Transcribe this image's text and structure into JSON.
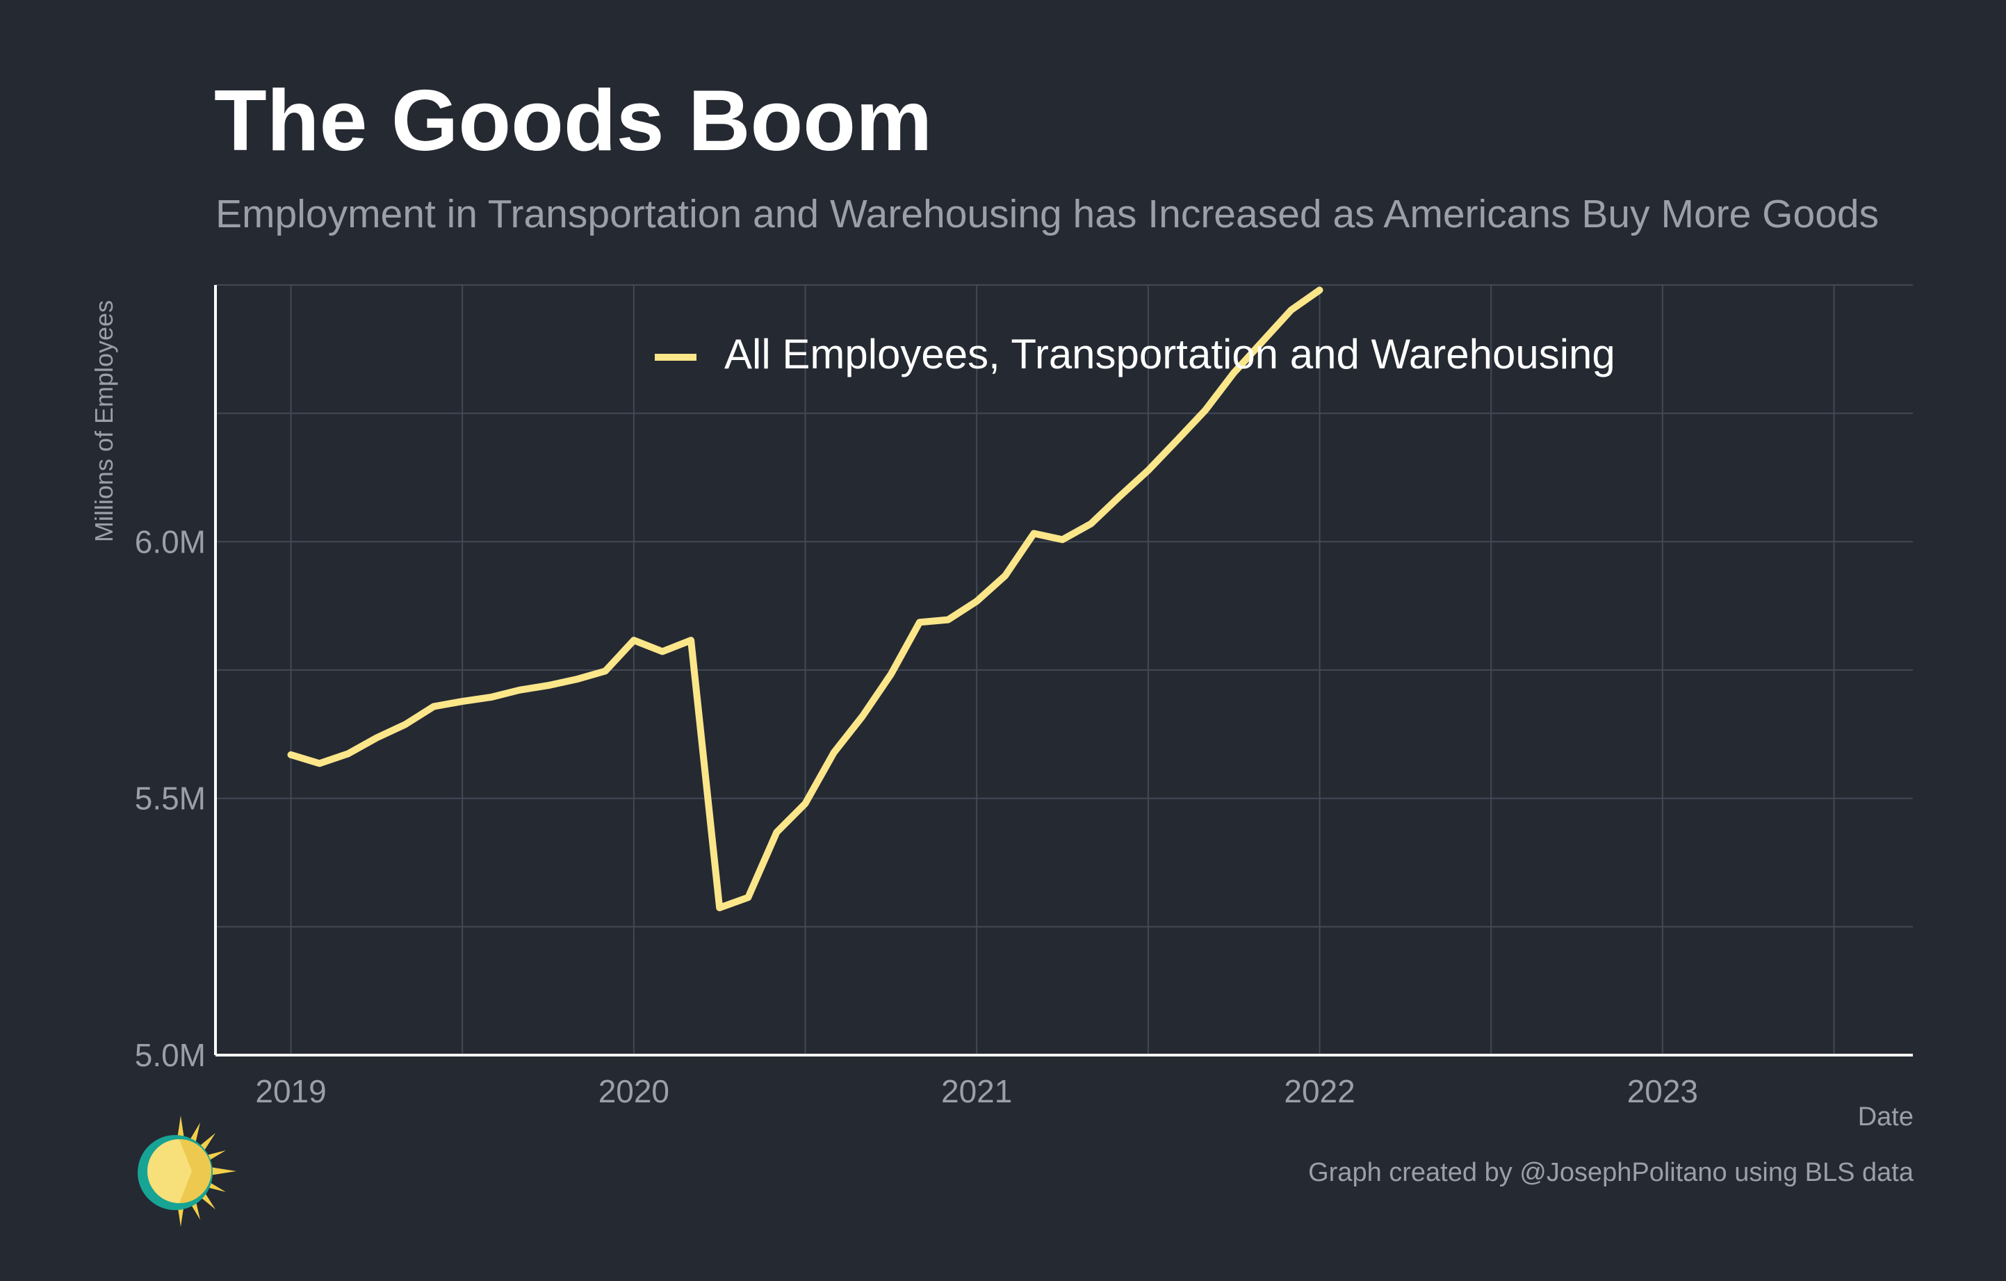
{
  "title": "The Goods Boom",
  "subtitle": "Employment in Transportation and Warehousing has Increased as Americans Buy More Goods",
  "caption": "Graph created by @JosephPolitano using BLS data",
  "colors": {
    "background": "#252932",
    "series": "#fbe68a",
    "grid": "#434955",
    "axis": "#ffffff",
    "muted_text": "#9aa0a8"
  },
  "chart_data": {
    "type": "line",
    "title": "The Goods Boom",
    "subtitle": "Employment in Transportation and Warehousing has Increased as Americans Buy More Goods",
    "xlabel": "Date",
    "ylabel": "Millions of Employees",
    "xlim": [
      2018.78,
      2023.73
    ],
    "ylim": [
      5.0,
      6.5
    ],
    "x_ticks": [
      2019,
      2020,
      2021,
      2022,
      2023
    ],
    "x_tick_labels": [
      "2019",
      "2020",
      "2021",
      "2022",
      "2023"
    ],
    "y_ticks": [
      5.0,
      5.5,
      6.0
    ],
    "y_tick_labels": [
      "5.0M",
      "5.5M",
      "6.0M"
    ],
    "grid": true,
    "legend_position": "top-center",
    "series": [
      {
        "name": "All Employees, Transportation and Warehousing",
        "color": "#fbe68a",
        "x": [
          "2019-01",
          "2019-02",
          "2019-03",
          "2019-04",
          "2019-05",
          "2019-06",
          "2019-07",
          "2019-08",
          "2019-09",
          "2019-10",
          "2019-11",
          "2019-12",
          "2020-01",
          "2020-02",
          "2020-03",
          "2020-04",
          "2020-05",
          "2020-06",
          "2020-07",
          "2020-08",
          "2020-09",
          "2020-10",
          "2020-11",
          "2020-12",
          "2021-01",
          "2021-02",
          "2021-03",
          "2021-04",
          "2021-05",
          "2021-06",
          "2021-07",
          "2021-08",
          "2021-09",
          "2021-10",
          "2021-11",
          "2021-12",
          "2022-01"
        ],
        "values": [
          5.585,
          5.568,
          5.587,
          5.618,
          5.644,
          5.679,
          5.689,
          5.697,
          5.711,
          5.72,
          5.732,
          5.748,
          5.808,
          5.786,
          5.808,
          5.287,
          5.307,
          5.434,
          5.49,
          5.589,
          5.66,
          5.742,
          5.843,
          5.848,
          5.884,
          5.934,
          6.016,
          6.004,
          6.035,
          6.088,
          6.139,
          6.197,
          6.256,
          6.329,
          6.39,
          6.451,
          6.49
        ]
      }
    ]
  }
}
